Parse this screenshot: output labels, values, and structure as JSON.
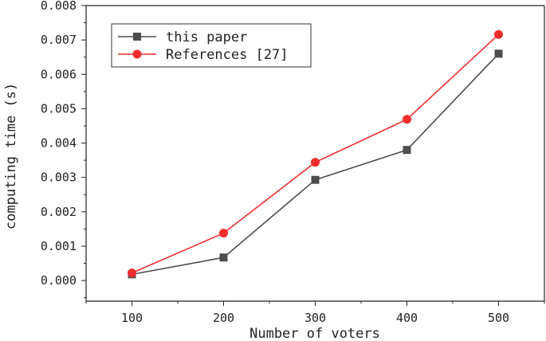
{
  "chart_data": {
    "type": "line",
    "title": "",
    "xlabel": "Number of voters",
    "ylabel": "computing time (s)",
    "x": [
      100,
      200,
      300,
      400,
      500
    ],
    "xlim": [
      50,
      550
    ],
    "xticks": [
      "100",
      "200",
      "300",
      "400",
      "500"
    ],
    "ylim": [
      -0.0006,
      0.008
    ],
    "yticks": [
      "0.000",
      "0.001",
      "0.002",
      "0.003",
      "0.004",
      "0.005",
      "0.006",
      "0.007",
      "0.008"
    ],
    "grid": false,
    "legend_position": "top-left",
    "series": [
      {
        "name": "this paper",
        "values": [
          0.00018,
          0.00067,
          0.00293,
          0.0038,
          0.0066
        ],
        "color": "#4d4d4d",
        "marker": "square"
      },
      {
        "name": "References [27]",
        "values": [
          0.00022,
          0.00138,
          0.00344,
          0.00469,
          0.00716
        ],
        "color": "#ee2d2d",
        "marker": "circle"
      }
    ]
  }
}
